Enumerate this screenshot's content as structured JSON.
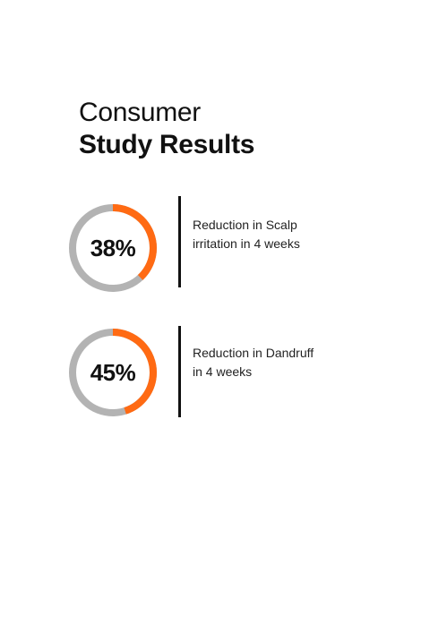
{
  "heading": {
    "line1": "Consumer",
    "line2": "Study Results"
  },
  "colors": {
    "accent": "#FF6A13",
    "track": "#B3B3B3",
    "text": "#111111"
  },
  "stats": [
    {
      "value_text": "38%",
      "value": 38,
      "caption_line1": "Reduction in Scalp",
      "caption_line2": "irritation in 4 weeks"
    },
    {
      "value_text": "45%",
      "value": 45,
      "caption_line1": "Reduction in Dandruff",
      "caption_line2": "in 4 weeks"
    }
  ]
}
